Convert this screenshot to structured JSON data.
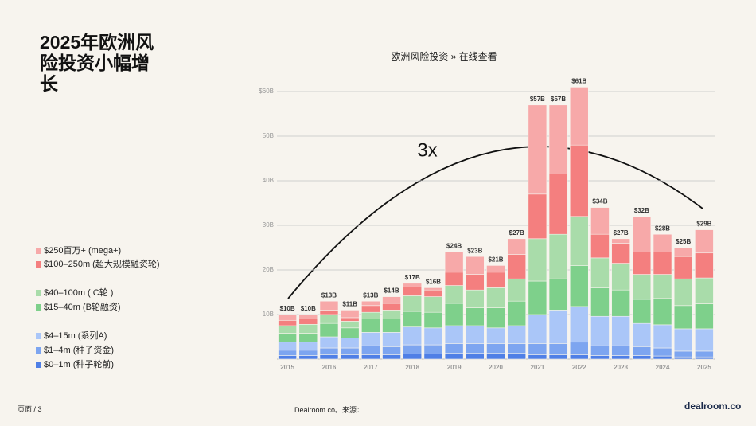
{
  "slide_title": "2025年欧洲风险投资小幅增长",
  "footer": {
    "page": "页面 / 3",
    "source": "Dealroom.co。来源：",
    "logo": "dealroom.co"
  },
  "chart_data": {
    "type": "stacked-bar",
    "title": "欧洲风险投资 » 在线查看",
    "annotation": "3x",
    "categories": [
      "2015",
      null,
      "2016",
      null,
      "2017",
      null,
      "2018",
      null,
      "2019",
      null,
      "2020",
      null,
      "2021",
      null,
      "2022",
      null,
      "2023",
      null,
      "2024",
      null,
      "2025"
    ],
    "ylim": [
      0,
      62
    ],
    "yticks": [
      {
        "value": 10,
        "label": "10B"
      },
      {
        "value": 20,
        "label": "20B"
      },
      {
        "value": 30,
        "label": "30B"
      },
      {
        "value": 40,
        "label": "40B"
      },
      {
        "value": 50,
        "label": "50B"
      },
      {
        "value": 60,
        "label": "$60B"
      }
    ],
    "grid": true,
    "series": [
      {
        "name": "$250百万+ (mega+)",
        "color": "#f7a9a9",
        "values": [
          1.3,
          1,
          2,
          1.7,
          1,
          1.5,
          0.8,
          0.5,
          4.5,
          4,
          1.5,
          3.5,
          20,
          15.5,
          13,
          6,
          1,
          8,
          4,
          2,
          5.2
        ]
      },
      {
        "name": "$100–250m (超大规模融资轮)",
        "color": "#f47f7f",
        "values": [
          1.2,
          1.2,
          1,
          0.8,
          1.5,
          1.5,
          2,
          1.5,
          3,
          3.5,
          3.5,
          5.5,
          10,
          13.5,
          16,
          5.3,
          4.5,
          5,
          5,
          5,
          5.6
        ]
      },
      {
        "name": "$40–100m ( C轮 )",
        "color": "#a9dcaa",
        "values": [
          1.7,
          2,
          2,
          1.5,
          1.5,
          2,
          3.5,
          3.5,
          4,
          4,
          4.5,
          5,
          9.5,
          10,
          11,
          6.7,
          6,
          5.6,
          5.4,
          6,
          5.8
        ]
      },
      {
        "name": "$15–40m (B轮融资)",
        "color": "#7ed08b",
        "values": [
          2,
          2,
          3,
          2.3,
          3,
          3,
          3.5,
          3.5,
          5,
          4,
          4.5,
          5.5,
          7.5,
          7,
          9.2,
          6.4,
          5.9,
          5.4,
          5.9,
          5.2,
          5.6
        ]
      },
      {
        "name": "$4–15m (系列A)",
        "color": "#aac6f8",
        "values": [
          1.8,
          1.8,
          2.5,
          2.2,
          3,
          3.2,
          4,
          3.8,
          4,
          4,
          3.5,
          4,
          6.5,
          7.5,
          8,
          6.6,
          6.6,
          5.2,
          5.2,
          5,
          5
        ]
      },
      {
        "name": "$1–4m (种子资金)",
        "color": "#7da5f0",
        "values": [
          1.2,
          1.2,
          1.5,
          1.5,
          2,
          1.8,
          2,
          2,
          2.2,
          2.2,
          2.2,
          2.2,
          2.5,
          2.5,
          2.8,
          2.2,
          2.2,
          2,
          1.8,
          1.3,
          1.3
        ]
      },
      {
        "name": "$0–1m (种子轮前)",
        "color": "#4f7fe6",
        "values": [
          0.8,
          0.8,
          1,
          1,
          1,
          1,
          1.2,
          1.2,
          1.3,
          1.3,
          1.3,
          1.3,
          1,
          1,
          1,
          0.8,
          0.8,
          0.8,
          0.7,
          0.5,
          0.5
        ]
      }
    ],
    "totals": {
      "values": [
        10,
        10,
        13,
        11,
        13,
        14,
        17,
        16,
        24,
        23,
        21,
        27,
        57,
        57,
        61,
        34,
        27,
        32,
        28,
        25,
        29
      ],
      "value_labels": [
        "$10B",
        "$10B",
        "$13B",
        "$11B",
        "$13B",
        "$14B",
        "$17B",
        "$16B",
        "$24B",
        "$23B",
        "$21B",
        "$27B",
        "$57B",
        "$57B",
        "$61B",
        "$34B",
        "$27B",
        "$32B",
        "$28B",
        "$25B",
        "$29B"
      ]
    }
  }
}
